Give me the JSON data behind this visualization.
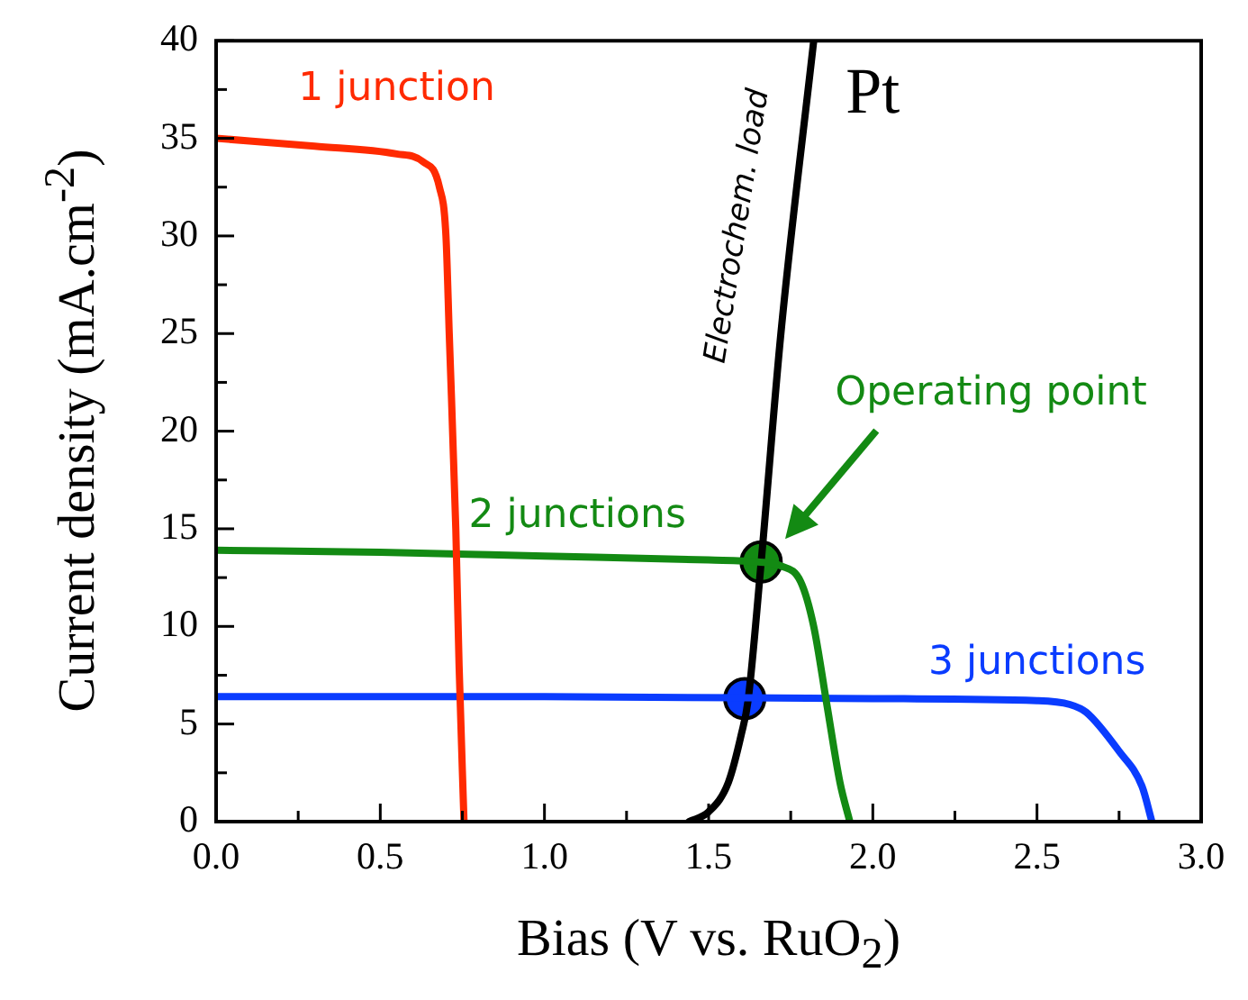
{
  "chart_data": {
    "type": "line",
    "xlabel": "Bias (V vs. RuO$_{2}$)",
    "ylabel": "Current density (mA.cm$^{-2}$)",
    "xlim": [
      0,
      3
    ],
    "ylim": [
      0,
      40
    ],
    "xticks": [
      {
        "value": 0,
        "label": "0.0"
      },
      {
        "value": 0.25,
        "label": null
      },
      {
        "value": 0.5,
        "label": "0.5"
      },
      {
        "value": 0.75,
        "label": null
      },
      {
        "value": 1,
        "label": "1.0"
      },
      {
        "value": 1.25,
        "label": null
      },
      {
        "value": 1.5,
        "label": "1.5"
      },
      {
        "value": 1.75,
        "label": null
      },
      {
        "value": 2,
        "label": "2.0"
      },
      {
        "value": 2.25,
        "label": null
      },
      {
        "value": 2.5,
        "label": "2.5"
      },
      {
        "value": 2.75,
        "label": null
      },
      {
        "value": 3,
        "label": "3.0"
      }
    ],
    "yticks": [
      0,
      {
        "value": 2.5,
        "label": null
      },
      5,
      {
        "value": 7.5,
        "label": null
      },
      10,
      {
        "value": 12.5,
        "label": null
      },
      15,
      {
        "value": 17.5,
        "label": null
      },
      20,
      {
        "value": 22.5,
        "label": null
      },
      25,
      {
        "value": 27.5,
        "label": null
      },
      30,
      {
        "value": 32.5,
        "label": null
      },
      35,
      {
        "value": 37.5,
        "label": null
      },
      40
    ],
    "grid": false,
    "legend": false,
    "marker": "none",
    "line_style": "solid",
    "series": [
      {
        "name": "1 junction",
        "color": "#ff2a00",
        "x": [
          0,
          0.3,
          0.55,
          0.63,
          0.68,
          0.7,
          0.71,
          0.73,
          0.74,
          0.755
        ],
        "values": [
          35,
          34.6,
          34.2,
          33.8,
          32.5,
          30,
          25,
          15,
          8,
          0
        ]
      },
      {
        "name": "2 junctions",
        "color": "#138a13",
        "x": [
          0,
          0.5,
          1,
          1.5,
          1.65,
          1.72,
          1.78,
          1.82,
          1.86,
          1.9,
          1.93
        ],
        "values": [
          13.9,
          13.8,
          13.6,
          13.4,
          13.3,
          13.1,
          12.3,
          10,
          6,
          2,
          0
        ]
      },
      {
        "name": "3 junctions",
        "color": "#0a3cff",
        "x": [
          0,
          1,
          2,
          2.5,
          2.6,
          2.65,
          2.75,
          2.82,
          2.85
        ],
        "values": [
          6.4,
          6.4,
          6.3,
          6.2,
          6,
          5.6,
          3.6,
          1.8,
          0
        ]
      },
      {
        "name": "Pt",
        "color": "#000000",
        "x": [
          1.44,
          1.5,
          1.56,
          1.6,
          1.62,
          1.66,
          1.72,
          1.82
        ],
        "values": [
          0,
          0.5,
          2,
          4.5,
          6.2,
          13.3,
          25,
          40
        ]
      },
      {
        "type": "scatter",
        "marker": "circle",
        "color": "#138a13",
        "x": [
          1.66
        ],
        "values": [
          13.3
        ]
      },
      {
        "type": "scatter",
        "marker": "circle",
        "color": "#0a3cff",
        "x": [
          1.61
        ],
        "values": [
          6.3
        ]
      }
    ],
    "annotations": [
      "Operating point",
      "Electrochem. load"
    ]
  }
}
